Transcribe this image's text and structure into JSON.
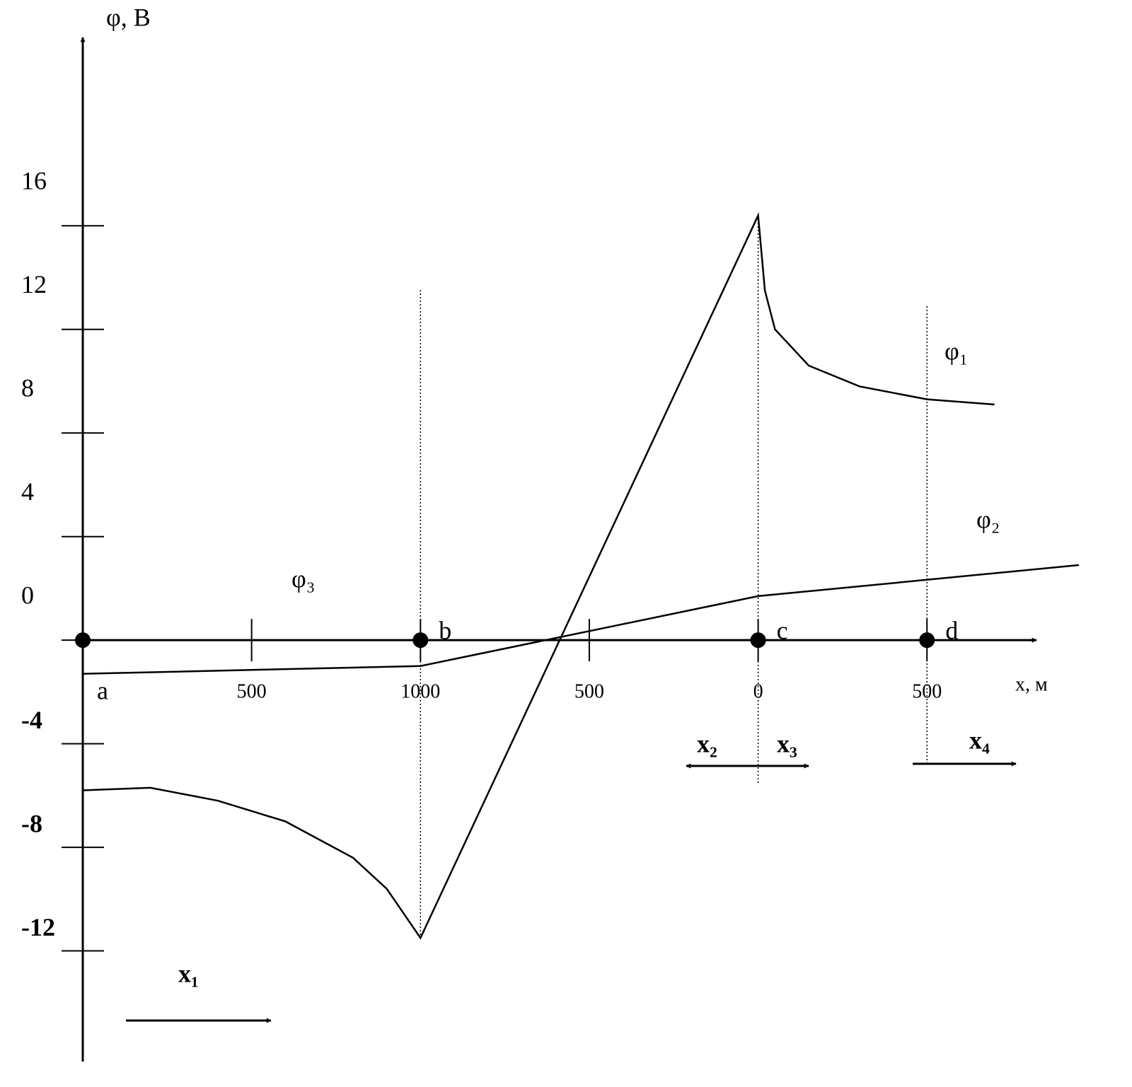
{
  "chart_data": {
    "type": "line",
    "y_label": "φ, В",
    "x_label": "х, м",
    "xlim": [
      0,
      2950
    ],
    "ylim": [
      -16,
      23
    ],
    "yticks": [
      -12,
      -8,
      -4,
      0,
      4,
      8,
      12,
      16
    ],
    "xticks": [
      {
        "value": 500,
        "label": "500"
      },
      {
        "value": 1000,
        "label": "1000"
      },
      {
        "value": 1500,
        "label": "500"
      },
      {
        "value": 2000,
        "label": "0"
      },
      {
        "value": 2500,
        "label": "500"
      }
    ],
    "series": [
      {
        "name": "φ₁",
        "color": "#000000",
        "x": [
          0,
          200,
          400,
          600,
          800,
          900,
          1000,
          2000,
          2020,
          2050,
          2150,
          2300,
          2500,
          2700
        ],
        "values": [
          -5.8,
          -5.7,
          -6.2,
          -7.0,
          -8.4,
          -9.6,
          -11.5,
          16.4,
          13.5,
          12,
          10.6,
          9.8,
          9.3,
          9.1
        ]
      },
      {
        "name": "φ₂",
        "color": "#000000",
        "x": [
          0,
          1000,
          2000,
          2950
        ],
        "values": [
          -1.3,
          -1.0,
          1.7,
          2.9
        ]
      }
    ],
    "annotations": [
      "φ₃"
    ],
    "points": [
      {
        "label": "a",
        "x": 0
      },
      {
        "label": "b",
        "x": 1000
      },
      {
        "label": "c",
        "x": 2000
      },
      {
        "label": "d",
        "x": 2500
      }
    ],
    "directions": [
      "x₁",
      "x₂",
      "x₃",
      "x₄"
    ]
  }
}
